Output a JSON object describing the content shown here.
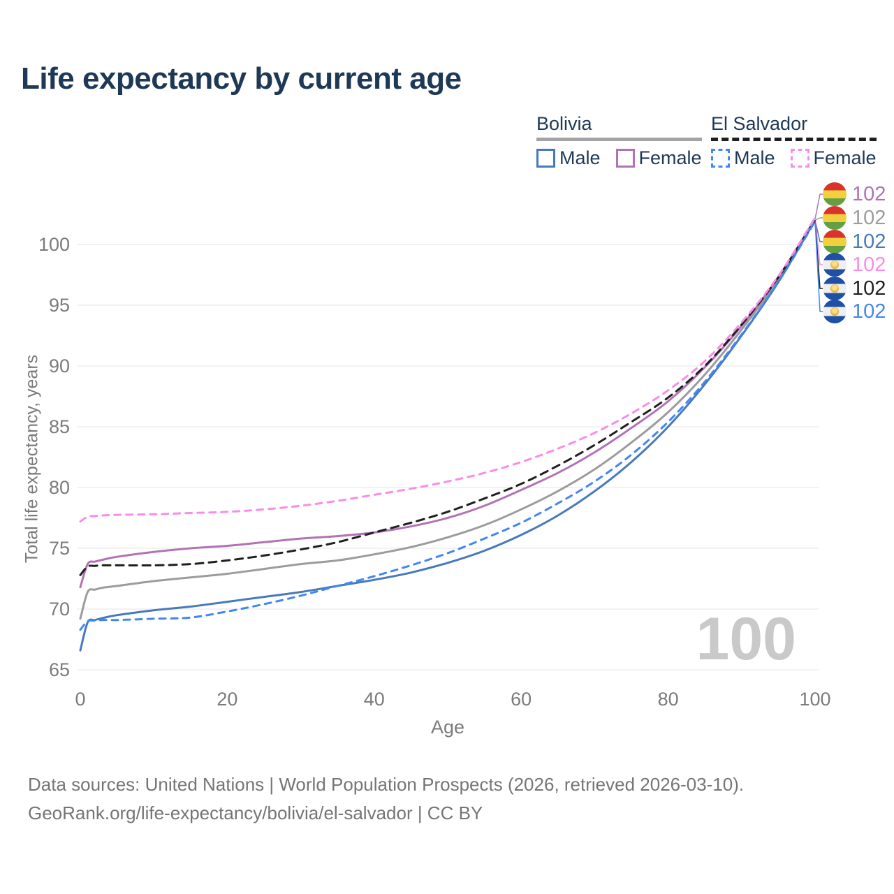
{
  "title": "Life expectancy by current age",
  "legend": {
    "bolivia": {
      "country": "Bolivia",
      "male": "Male",
      "female": "Female"
    },
    "el_salvador": {
      "country": "El Salvador",
      "male": "Male",
      "female": "Female"
    }
  },
  "watermark": "100",
  "footer": {
    "line1": "Data sources: United Nations | World Population Prospects (2026, retrieved 2026-03-10).",
    "line2": "GeoRank.org/life-expectancy/bolivia/el-salvador | CC BY"
  },
  "colors": {
    "title_navy": "#1e3956",
    "tick_gray": "#7b7b7b",
    "grid_gray": "#ededed",
    "watermark_gray": "#c9c9c9",
    "bolivia_male": "#4679bd",
    "bolivia_female": "#b173b5",
    "bolivia_all": "#9c9c9c",
    "el_salvador_male": "#4187f2",
    "el_salvador_female": "#fb8ce5",
    "el_salvador_all": "#1f1f1f"
  },
  "chart_data": {
    "type": "line",
    "title": "Life expectancy by current age",
    "xlabel": "Age",
    "ylabel": "Total life expectancy, years",
    "xlim": [
      0,
      100
    ],
    "ylim": [
      65,
      103
    ],
    "xticks": [
      0,
      20,
      40,
      60,
      80,
      100
    ],
    "yticks": [
      65,
      70,
      75,
      80,
      85,
      90,
      95,
      100
    ],
    "grid": "horizontal-only",
    "legend_position": "top-right",
    "x": [
      0,
      1,
      2,
      3,
      5,
      10,
      15,
      20,
      25,
      30,
      35,
      40,
      45,
      50,
      55,
      60,
      65,
      70,
      75,
      80,
      85,
      90,
      95,
      100
    ],
    "series": [
      {
        "id": "bolivia_all",
        "country": "Bolivia",
        "sex": "All",
        "style": "solid",
        "color": "#9c9c9c",
        "values": [
          69.2,
          71.4,
          71.6,
          71.75,
          71.9,
          72.3,
          72.6,
          72.9,
          73.3,
          73.7,
          74.0,
          74.5,
          75.1,
          75.9,
          76.9,
          78.2,
          79.7,
          81.5,
          83.7,
          86.2,
          89.3,
          93.0,
          97.1,
          102.0
        ]
      },
      {
        "id": "bolivia_female",
        "country": "Bolivia",
        "sex": "Female",
        "style": "solid",
        "color": "#b173b5",
        "values": [
          71.8,
          73.7,
          73.9,
          74.05,
          74.3,
          74.7,
          75.0,
          75.2,
          75.5,
          75.8,
          76.0,
          76.3,
          76.8,
          77.5,
          78.5,
          79.8,
          81.2,
          82.9,
          84.9,
          87.1,
          89.9,
          93.3,
          97.3,
          102.1
        ]
      },
      {
        "id": "bolivia_male",
        "country": "Bolivia",
        "sex": "Male",
        "style": "solid",
        "color": "#4679bd",
        "values": [
          66.6,
          68.9,
          69.1,
          69.25,
          69.5,
          69.9,
          70.2,
          70.6,
          71.0,
          71.4,
          71.9,
          72.4,
          73.0,
          73.8,
          74.8,
          76.1,
          77.7,
          79.7,
          82.1,
          85.0,
          88.5,
          92.5,
          96.9,
          102.0
        ]
      },
      {
        "id": "es_all",
        "country": "El Salvador",
        "sex": "All",
        "style": "dashed",
        "color": "#1f1f1f",
        "values": [
          72.8,
          73.5,
          73.55,
          73.6,
          73.6,
          73.6,
          73.7,
          74.0,
          74.4,
          74.9,
          75.5,
          76.3,
          77.1,
          78.0,
          79.1,
          80.3,
          81.8,
          83.5,
          85.4,
          87.4,
          90.0,
          93.4,
          97.3,
          102.0
        ]
      },
      {
        "id": "es_female",
        "country": "El Salvador",
        "sex": "Female",
        "style": "dashed",
        "color": "#fb8ce5",
        "values": [
          77.2,
          77.6,
          77.65,
          77.7,
          77.75,
          77.8,
          77.9,
          78.0,
          78.2,
          78.5,
          78.9,
          79.4,
          79.9,
          80.5,
          81.2,
          82.1,
          83.2,
          84.5,
          86.1,
          88.0,
          90.4,
          93.6,
          97.4,
          102.2
        ]
      },
      {
        "id": "es_male",
        "country": "El Salvador",
        "sex": "Male",
        "style": "dashed",
        "color": "#4187f2",
        "values": [
          68.3,
          69.0,
          69.05,
          69.1,
          69.1,
          69.2,
          69.3,
          69.8,
          70.4,
          71.1,
          71.9,
          72.7,
          73.6,
          74.6,
          75.8,
          77.1,
          78.7,
          80.5,
          82.7,
          85.4,
          88.7,
          92.6,
          96.9,
          101.9
        ]
      }
    ],
    "end_labels": [
      {
        "series": "bolivia_female",
        "value": "102",
        "flag": "bolivia",
        "flag_icon": "bolivia-flag-icon",
        "color": "#b173b5"
      },
      {
        "series": "bolivia_all",
        "value": "102",
        "flag": "bolivia",
        "flag_icon": "bolivia-flag-icon",
        "color": "#9c9c9c"
      },
      {
        "series": "bolivia_male",
        "value": "102",
        "flag": "bolivia",
        "flag_icon": "bolivia-flag-icon",
        "color": "#4679bd"
      },
      {
        "series": "es_female",
        "value": "102",
        "flag": "el-salvador",
        "flag_icon": "el-salvador-flag-icon",
        "color": "#fb8ce5"
      },
      {
        "series": "es_all",
        "value": "102",
        "flag": "el-salvador",
        "flag_icon": "el-salvador-flag-icon",
        "color": "#1f1f1f"
      },
      {
        "series": "es_male",
        "value": "102",
        "flag": "el-salvador",
        "flag_icon": "el-salvador-flag-icon",
        "color": "#4187f2"
      }
    ]
  }
}
